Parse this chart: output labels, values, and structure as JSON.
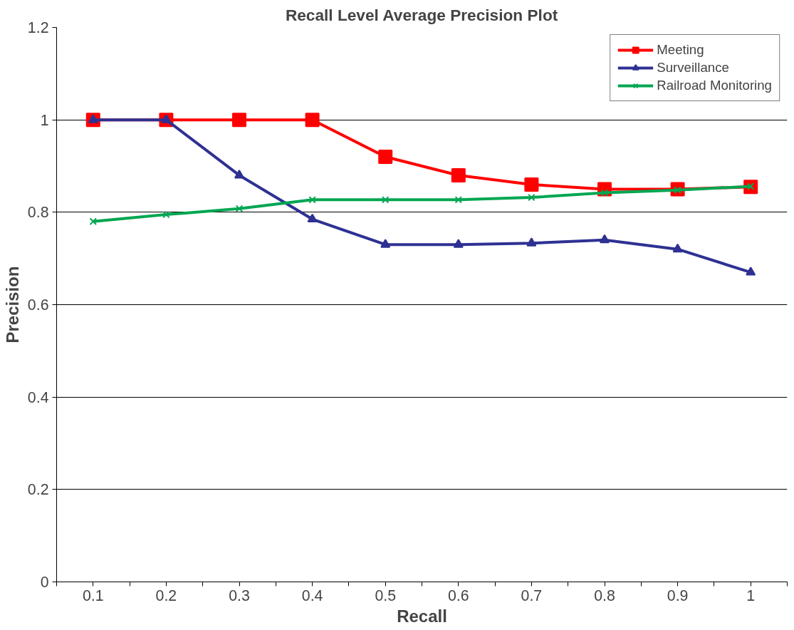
{
  "chart_data": {
    "type": "line",
    "title": "Recall Level Average Precision Plot",
    "xlabel": "Recall",
    "ylabel": "Precision",
    "categories": [
      "0.1",
      "0.2",
      "0.3",
      "0.4",
      "0.5",
      "0.6",
      "0.7",
      "0.8",
      "0.9",
      "1"
    ],
    "series": [
      {
        "name": "Meeting",
        "color": "#ff0000",
        "marker": "square",
        "values": [
          1.0,
          1.0,
          1.0,
          1.0,
          0.92,
          0.88,
          0.86,
          0.85,
          0.85,
          0.855
        ]
      },
      {
        "name": "Surveillance",
        "color": "#2e3192",
        "marker": "triangle",
        "values": [
          1.0,
          1.0,
          0.88,
          0.785,
          0.73,
          0.73,
          0.733,
          0.74,
          0.72,
          0.67
        ]
      },
      {
        "name": "Railroad Monitoring",
        "color": "#00a651",
        "marker": "cross",
        "values": [
          0.78,
          0.795,
          0.808,
          0.827,
          0.827,
          0.827,
          0.832,
          0.842,
          0.848,
          0.856
        ]
      }
    ],
    "ylim": [
      0,
      1.2
    ],
    "yticks": [
      0,
      0.2,
      0.4,
      0.6,
      0.8,
      1,
      1.2
    ],
    "grid": "y",
    "legend": "top right",
    "line_style": "solid"
  }
}
